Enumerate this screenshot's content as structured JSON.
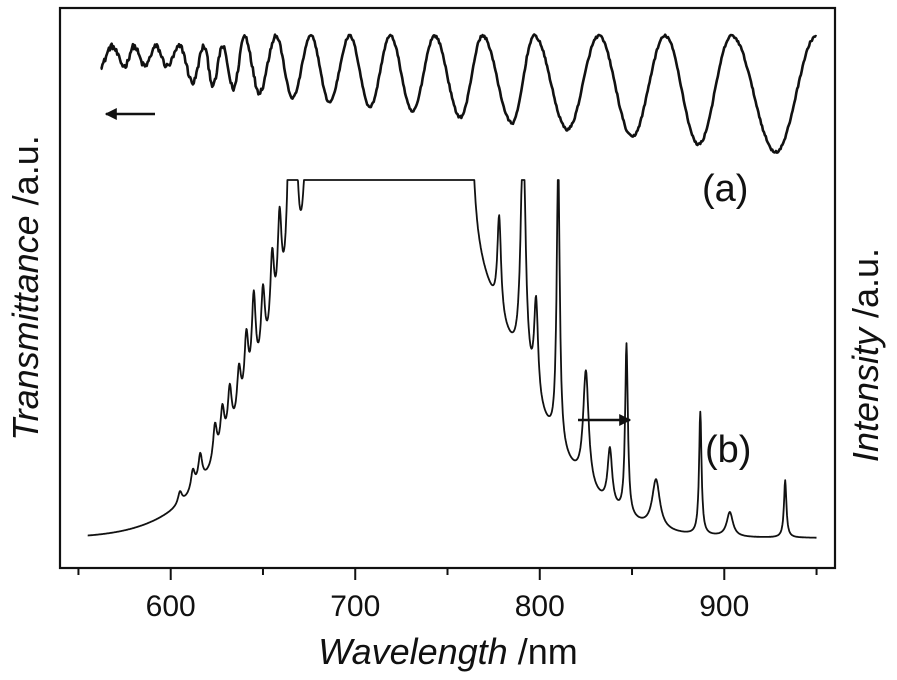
{
  "chart_data": {
    "type": "line",
    "xlabel_italic": "Wavelength",
    "xlabel_unit": " /nm",
    "ylabel_left_italic": "Transmittance",
    "ylabel_left_unit": " /a.u.",
    "ylabel_right_italic": "Intensity",
    "ylabel_right_unit": " /a.u.",
    "xlim": [
      540,
      960
    ],
    "xticks": [
      600,
      700,
      800,
      900
    ],
    "xtick_labels": [
      "600",
      "700",
      "800",
      "900"
    ],
    "minor_xticks": [
      550,
      650,
      750,
      850,
      950
    ],
    "grid": false,
    "annotations": [
      {
        "id": "a",
        "text": "(a)"
      },
      {
        "id": "b",
        "text": "(b)"
      }
    ],
    "arrows": [
      {
        "id": "left-arrow",
        "direction": "left",
        "series": "transmittance"
      },
      {
        "id": "right-arrow",
        "direction": "right",
        "series": "intensity"
      }
    ],
    "series": [
      {
        "key": "transmittance",
        "axis": "left",
        "label": "(a)",
        "color": "#111111",
        "fringe_maxima": [
          568,
          580,
          592,
          605,
          618,
          628,
          640,
          657,
          676,
          697,
          719,
          743,
          769,
          797,
          832,
          868,
          904,
          950
        ],
        "fringe_minima": [
          562,
          575,
          586,
          598,
          612,
          623,
          634,
          648,
          666,
          686,
          708,
          731,
          757,
          785,
          815,
          850,
          886,
          928
        ],
        "noise_level": 0.02
      },
      {
        "key": "intensity",
        "axis": "right",
        "label": "(b)",
        "color": "#111111",
        "x_range": [
          555,
          950
        ],
        "envelope": {
          "center": 720,
          "peak": 0.5,
          "width": 72,
          "baseline": 0.012
        },
        "peaks": [
          {
            "x": 605,
            "h": 0.015,
            "w": 1.3
          },
          {
            "x": 612,
            "h": 0.025,
            "w": 1.3
          },
          {
            "x": 616,
            "h": 0.035,
            "w": 1.3
          },
          {
            "x": 624,
            "h": 0.045,
            "w": 1.3
          },
          {
            "x": 628,
            "h": 0.05,
            "w": 1.3
          },
          {
            "x": 632,
            "h": 0.06,
            "w": 1.3
          },
          {
            "x": 637,
            "h": 0.06,
            "w": 1.3
          },
          {
            "x": 641,
            "h": 0.08,
            "w": 1.3
          },
          {
            "x": 645,
            "h": 0.11,
            "w": 1.3
          },
          {
            "x": 650,
            "h": 0.09,
            "w": 1.3
          },
          {
            "x": 655,
            "h": 0.1,
            "w": 1.3
          },
          {
            "x": 659,
            "h": 0.12,
            "w": 1.3
          },
          {
            "x": 665,
            "h": 0.33,
            "w": 1.5
          },
          {
            "x": 668,
            "h": 0.1,
            "w": 1.3
          },
          {
            "x": 674,
            "h": 0.18,
            "w": 1.4
          },
          {
            "x": 677,
            "h": 0.2,
            "w": 1.4
          },
          {
            "x": 681,
            "h": 0.18,
            "w": 1.4
          },
          {
            "x": 685,
            "h": 0.17,
            "w": 1.5
          },
          {
            "x": 702,
            "h": 0.2,
            "w": 1.6
          },
          {
            "x": 705,
            "h": 0.22,
            "w": 1.6
          },
          {
            "x": 709,
            "h": 0.18,
            "w": 1.6
          },
          {
            "x": 731,
            "h": 0.55,
            "w": 1.8
          },
          {
            "x": 733,
            "h": 0.25,
            "w": 2.2
          },
          {
            "x": 752,
            "h": 0.06,
            "w": 1.5
          },
          {
            "x": 761,
            "h": 0.43,
            "w": 1.8
          },
          {
            "x": 778,
            "h": 0.12,
            "w": 1.2
          },
          {
            "x": 791,
            "h": 0.3,
            "w": 1.6
          },
          {
            "x": 798,
            "h": 0.12,
            "w": 1.3
          },
          {
            "x": 810,
            "h": 0.35,
            "w": 1.0
          },
          {
            "x": 825,
            "h": 0.14,
            "w": 1.8
          },
          {
            "x": 838,
            "h": 0.07,
            "w": 1.5
          },
          {
            "x": 847,
            "h": 0.21,
            "w": 0.9
          },
          {
            "x": 863,
            "h": 0.06,
            "w": 2.5
          },
          {
            "x": 887,
            "h": 0.15,
            "w": 0.8
          },
          {
            "x": 903,
            "h": 0.03,
            "w": 2.0
          },
          {
            "x": 933,
            "h": 0.07,
            "w": 0.8
          }
        ]
      }
    ]
  }
}
